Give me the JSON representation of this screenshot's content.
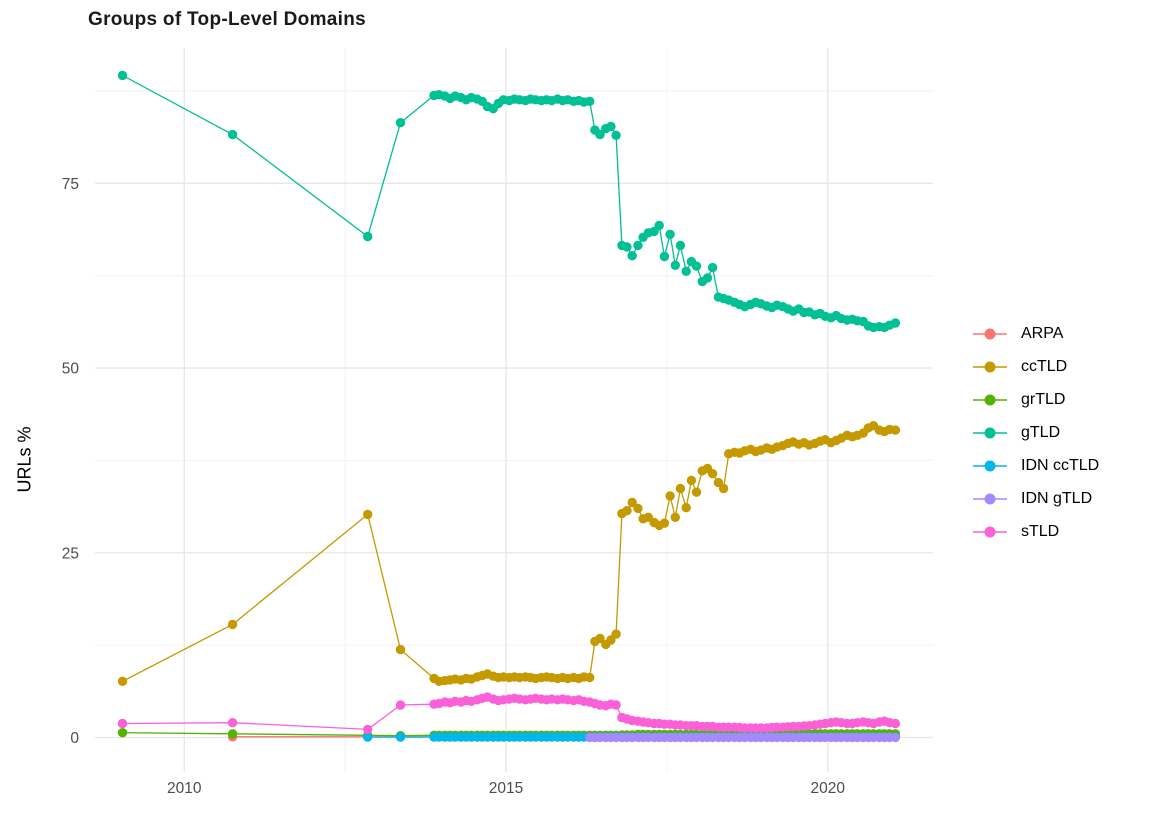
{
  "chart_data": {
    "type": "line",
    "title": "Groups of Top-Level Domains",
    "xlabel": "",
    "ylabel": "URLs %",
    "grid": true,
    "legend_position": "right",
    "xlim": [
      2008.6,
      2021.75
    ],
    "ylim": [
      -4.5,
      93.7
    ],
    "x_ticks": [
      {
        "label": "2010",
        "value": 2010
      },
      {
        "label": "2015",
        "value": 2015
      },
      {
        "label": "2020",
        "value": 2020
      }
    ],
    "y_ticks": [
      {
        "label": "0",
        "value": 0
      },
      {
        "label": "25",
        "value": 25
      },
      {
        "label": "50",
        "value": 50
      },
      {
        "label": "75",
        "value": 75
      }
    ],
    "x_minor": [
      2012.5,
      2017.5
    ],
    "y_minor": [
      12.5,
      37.5,
      62.5,
      87.5
    ],
    "x_grid": {
      "sparse": [
        2009.04,
        2010.75,
        2012.85,
        2013.36
      ],
      "dense": [
        2013.88,
        2013.96,
        2014.05,
        2014.13,
        2014.21,
        2014.3,
        2014.38,
        2014.46,
        2014.55,
        2014.63,
        2014.71,
        2014.8,
        2014.88,
        2014.96,
        2015.05,
        2015.13,
        2015.21,
        2015.3,
        2015.38,
        2015.46,
        2015.55,
        2015.63,
        2015.71,
        2015.8,
        2015.88,
        2015.96,
        2016.05,
        2016.13,
        2016.21,
        2016.3
      ],
      "mid": [
        2016.38,
        2016.46,
        2016.55,
        2016.63,
        2016.71
      ],
      "right": [
        2016.8,
        2016.88,
        2016.96,
        2017.05,
        2017.13,
        2017.21,
        2017.3,
        2017.38,
        2017.46,
        2017.55,
        2017.63,
        2017.71,
        2017.8,
        2017.88,
        2017.96,
        2018.05,
        2018.13,
        2018.21,
        2018.3,
        2018.38,
        2018.46,
        2018.55,
        2018.63,
        2018.71,
        2018.8,
        2018.88,
        2018.96,
        2019.05,
        2019.13,
        2019.21,
        2019.3,
        2019.38,
        2019.46,
        2019.55,
        2019.63,
        2019.71,
        2019.8,
        2019.88,
        2019.96,
        2020.05,
        2020.13,
        2020.21,
        2020.3,
        2020.38,
        2020.46,
        2020.55,
        2020.63,
        2020.71,
        2020.8,
        2020.88,
        2020.96,
        2021.05
      ]
    },
    "series": [
      {
        "name": "ARPA",
        "color": "#F8766D",
        "values_const": 0.1,
        "x_from": 2010.75
      },
      {
        "name": "ccTLD",
        "color": "#C49A00",
        "values": {
          "sparse": [
            7.6,
            15.3,
            30.2,
            11.9
          ],
          "dense": [
            8.0,
            7.6,
            7.7,
            7.8,
            7.9,
            7.8,
            8.0,
            7.9,
            8.2,
            8.4,
            8.6,
            8.3,
            8.1,
            8.2,
            8.1,
            8.2,
            8.1,
            8.2,
            8.1,
            8.0,
            8.1,
            8.2,
            8.1,
            8.0,
            8.1,
            8.0,
            8.1,
            8.0,
            8.2,
            8.1
          ],
          "mid": [
            13.0,
            13.4,
            12.6,
            13.2,
            14.0
          ],
          "right": [
            30.3,
            30.7,
            31.8,
            31.0,
            29.6,
            29.8,
            29.1,
            28.7,
            29.0,
            32.7,
            29.8,
            33.7,
            31.1,
            34.8,
            33.2,
            36.1,
            36.4,
            35.7,
            34.5,
            33.7,
            38.4,
            38.6,
            38.5,
            38.8,
            39.0,
            38.7,
            38.9,
            39.2,
            39.0,
            39.3,
            39.5,
            39.8,
            40.0,
            39.7,
            39.9,
            39.6,
            39.8,
            40.1,
            40.3,
            39.9,
            40.2,
            40.5,
            40.9,
            40.7,
            40.9,
            41.2,
            41.9,
            42.2,
            41.6,
            41.4,
            41.7,
            41.6
          ]
        }
      },
      {
        "name": "grTLD",
        "color": "#53B400",
        "values": {
          "sparse": [
            0.65,
            0.5,
            0.3,
            0.25
          ],
          "dense": [
            0.3,
            0.3,
            0.3,
            0.3,
            0.3,
            0.3,
            0.3,
            0.3,
            0.3,
            0.3,
            0.3,
            0.3,
            0.3,
            0.3,
            0.3,
            0.3,
            0.3,
            0.3,
            0.3,
            0.3,
            0.3,
            0.3,
            0.3,
            0.3,
            0.3,
            0.3,
            0.3,
            0.3,
            0.3,
            0.3
          ],
          "mid": [
            0.3,
            0.3,
            0.3,
            0.3,
            0.3
          ],
          "right": [
            0.35,
            0.35,
            0.35,
            0.4,
            0.4,
            0.4,
            0.4,
            0.4,
            0.4,
            0.4,
            0.4,
            0.4,
            0.4,
            0.4,
            0.4,
            0.4,
            0.45,
            0.45,
            0.45,
            0.45,
            0.45,
            0.45,
            0.45,
            0.45,
            0.45,
            0.45,
            0.45,
            0.45,
            0.45,
            0.45,
            0.5,
            0.5,
            0.5,
            0.5,
            0.5,
            0.5,
            0.5,
            0.5,
            0.5,
            0.5,
            0.5,
            0.5,
            0.5,
            0.5,
            0.5,
            0.5,
            0.5,
            0.5,
            0.5,
            0.5,
            0.5,
            0.5
          ]
        }
      },
      {
        "name": "gTLD",
        "color": "#00C094",
        "values": {
          "sparse": [
            89.6,
            81.6,
            67.8,
            83.2
          ],
          "dense": [
            86.9,
            87.0,
            86.8,
            86.5,
            86.8,
            86.6,
            86.3,
            86.6,
            86.4,
            86.1,
            85.4,
            85.1,
            85.8,
            86.3,
            86.2,
            86.4,
            86.3,
            86.2,
            86.4,
            86.3,
            86.2,
            86.3,
            86.2,
            86.4,
            86.2,
            86.3,
            86.1,
            86.2,
            86.0,
            86.1
          ],
          "mid": [
            82.2,
            81.6,
            82.4,
            82.7,
            81.5
          ],
          "right": [
            66.6,
            66.4,
            65.2,
            66.6,
            67.7,
            68.3,
            68.5,
            69.3,
            65.1,
            68.1,
            63.9,
            66.6,
            63.1,
            64.4,
            63.8,
            61.7,
            62.2,
            63.6,
            59.6,
            59.4,
            59.2,
            58.9,
            58.6,
            58.3,
            58.6,
            58.9,
            58.7,
            58.4,
            58.2,
            58.5,
            58.3,
            58.0,
            57.7,
            58.0,
            57.5,
            57.6,
            57.2,
            57.4,
            57.0,
            56.8,
            57.1,
            56.7,
            56.5,
            56.6,
            56.4,
            56.3,
            55.7,
            55.5,
            55.6,
            55.5,
            55.8,
            56.1
          ]
        }
      },
      {
        "name": "IDN ccTLD",
        "color": "#00B6EB",
        "values_const": 0.05,
        "x_from": 2012.85
      },
      {
        "name": "IDN gTLD",
        "color": "#A58AFF",
        "values_const": 0.02,
        "x_from": 2016.3
      },
      {
        "name": "sTLD",
        "color": "#FB61D7",
        "values": {
          "sparse": [
            1.9,
            2.0,
            1.1,
            4.4
          ],
          "dense": [
            4.5,
            4.6,
            4.8,
            4.7,
            4.9,
            4.8,
            5.0,
            4.9,
            5.1,
            5.3,
            5.5,
            5.2,
            5.0,
            5.1,
            5.2,
            5.3,
            5.2,
            5.1,
            5.2,
            5.3,
            5.2,
            5.1,
            5.2,
            5.1,
            5.2,
            5.1,
            5.0,
            5.1,
            4.9,
            4.8
          ],
          "mid": [
            4.6,
            4.4,
            4.3,
            4.5,
            4.4
          ],
          "right": [
            2.7,
            2.5,
            2.3,
            2.2,
            2.1,
            2.0,
            1.9,
            1.9,
            1.8,
            1.8,
            1.7,
            1.7,
            1.6,
            1.6,
            1.6,
            1.5,
            1.5,
            1.5,
            1.4,
            1.4,
            1.4,
            1.4,
            1.35,
            1.3,
            1.3,
            1.3,
            1.3,
            1.3,
            1.35,
            1.4,
            1.4,
            1.45,
            1.5,
            1.5,
            1.55,
            1.6,
            1.7,
            1.8,
            1.9,
            2.0,
            2.1,
            2.0,
            1.9,
            1.9,
            2.0,
            2.1,
            2.0,
            1.9,
            2.1,
            2.2,
            2.0,
            1.9
          ]
        }
      }
    ],
    "style": {
      "grid_major_color": "#E7E7E7",
      "grid_minor_color": "#F2F2F2",
      "tick_label_color": "#4D4D4D",
      "point_radius": 4.7
    }
  }
}
